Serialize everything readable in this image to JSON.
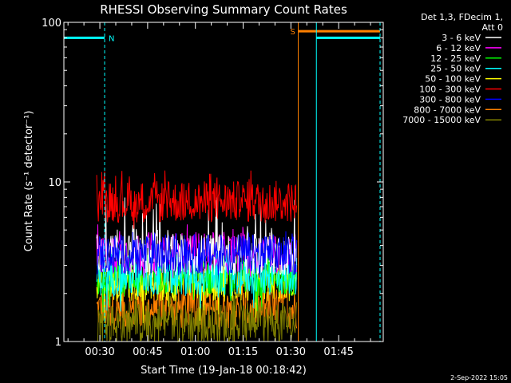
{
  "chart_data": {
    "type": "line",
    "title": "RHESSI Observing Summary Count Rates",
    "xlabel": "Start Time (19-Jan-18 00:18:42)",
    "ylabel": "Count Rate (s⁻¹ detector⁻¹)",
    "y_scale": "log",
    "ylim": [
      1,
      100
    ],
    "xlim_minutes": [
      18.7,
      119.0
    ],
    "x_ticks": [
      {
        "t": 30,
        "label": "00:30"
      },
      {
        "t": 45,
        "label": "00:45"
      },
      {
        "t": 60,
        "label": "01:00"
      },
      {
        "t": 75,
        "label": "01:15"
      },
      {
        "t": 90,
        "label": "01:30"
      },
      {
        "t": 105,
        "label": "01:45"
      }
    ],
    "y_ticks": [
      {
        "v": 1,
        "label": "1"
      },
      {
        "v": 10,
        "label": "10"
      },
      {
        "v": 100,
        "label": "100"
      }
    ],
    "data_start_minute": 29,
    "data_end_minute": 92,
    "legend": {
      "placement": "top-right",
      "header": [
        "Det 1,3, FDecim 1,",
        "Att 0"
      ]
    },
    "series": [
      {
        "name": "3 - 6 keV",
        "color": "#ffffff",
        "baseline": 3.5,
        "range": [
          2.5,
          8
        ]
      },
      {
        "name": "6 - 12 keV",
        "color": "#ff00ff",
        "baseline": 3.6,
        "range": [
          2.5,
          5.5
        ]
      },
      {
        "name": "12 - 25 keV",
        "color": "#00ff00",
        "baseline": 2.6,
        "range": [
          1.5,
          4
        ]
      },
      {
        "name": "25 - 50 keV",
        "color": "#00ffff",
        "baseline": 2.6,
        "range": [
          1.5,
          4
        ]
      },
      {
        "name": "50 - 100 keV",
        "color": "#ffff00",
        "baseline": 2.4,
        "range": [
          1.3,
          3.5
        ]
      },
      {
        "name": "100 - 300 keV",
        "color": "#ff0000",
        "baseline": 7.5,
        "range": [
          5,
          12
        ]
      },
      {
        "name": "300 - 800 keV",
        "color": "#0000ff",
        "baseline": 3.5,
        "range": [
          2.5,
          5
        ]
      },
      {
        "name": "800 - 7000 keV",
        "color": "#ff8000",
        "baseline": 1.6,
        "range": [
          1,
          3
        ]
      },
      {
        "name": "7000 - 15000 keV",
        "color": "#808000",
        "baseline": 1.3,
        "range": [
          1,
          2
        ]
      }
    ],
    "annotations": [
      {
        "type": "night",
        "label": "N",
        "color": "#00ffff",
        "start": 18.7,
        "end": 31.5,
        "level": 80
      },
      {
        "type": "saa",
        "label": "S",
        "color": "#ff8000",
        "start": 92.3,
        "end": 118.0,
        "level": 88
      },
      {
        "type": "night",
        "label": "",
        "color": "#00ffff",
        "start": 98.0,
        "end": 118.0,
        "level": 80
      }
    ],
    "timestamp": "2-Sep-2022 15:05"
  }
}
